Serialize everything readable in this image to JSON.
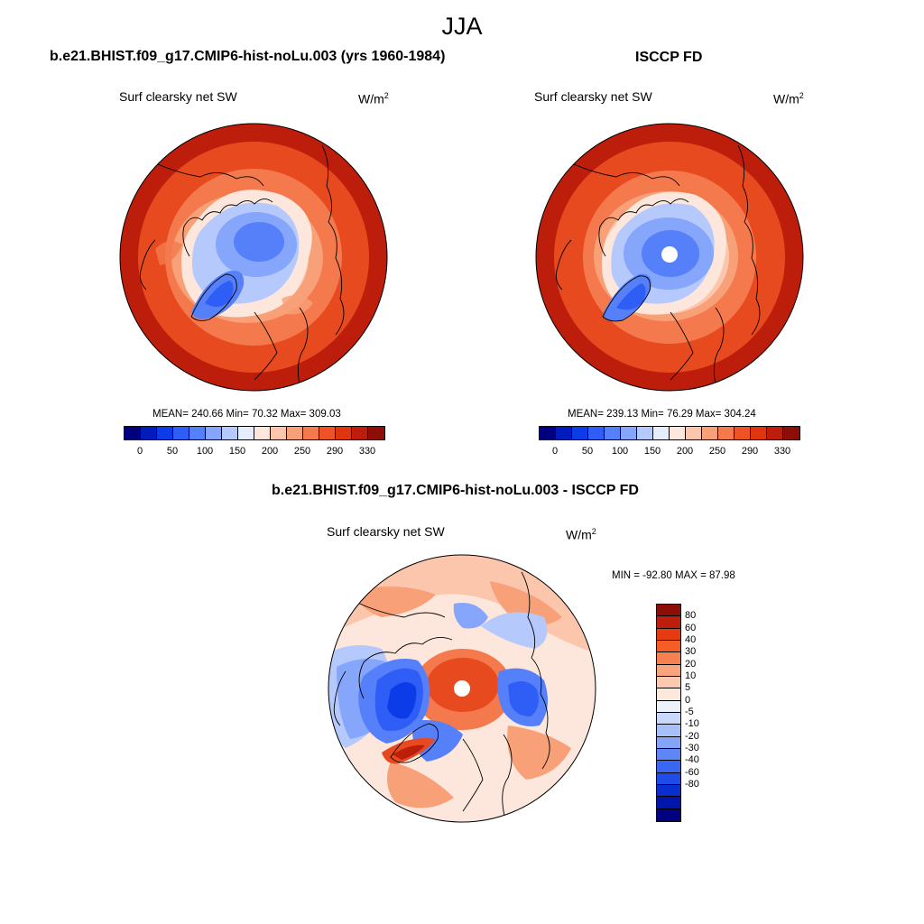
{
  "season": "JJA",
  "panels": {
    "model": {
      "title": "b.e21.BHIST.f09_g17.CMIP6-hist-noLu.003 (yrs 1960-1984)",
      "variable": "Surf clearsky net SW",
      "units_base": "W/m",
      "units_exp": "2",
      "stats": "MEAN= 240.66  Min=  70.32  Max= 309.03"
    },
    "obs": {
      "title": "ISCCP FD",
      "variable": "Surf clearsky net SW",
      "units_base": "W/m",
      "units_exp": "2",
      "stats": "MEAN= 239.13  Min=  76.29  Max= 304.24"
    },
    "diff": {
      "title": "b.e21.BHIST.f09_g17.CMIP6-hist-noLu.003 - ISCCP FD",
      "variable": "Surf clearsky net SW",
      "units_base": "W/m",
      "units_exp": "2",
      "stats": "MIN = -92.80 MAX =  87.98"
    }
  },
  "colorbar_main": {
    "colors": [
      "#00007f",
      "#001cbc",
      "#0b3ce8",
      "#2e5ef5",
      "#5680f9",
      "#86a6fb",
      "#b5c9fc",
      "#e6eefb",
      "#fde7dc",
      "#fcc6ad",
      "#f8a078",
      "#f47a4e",
      "#ee5326",
      "#df3410",
      "#bc1e0b",
      "#8c0e06"
    ],
    "tick_labels": [
      "0",
      "50",
      "100",
      "150",
      "200",
      "250",
      "290",
      "330"
    ]
  },
  "colorbar_diff": {
    "colors": [
      "#8c0e06",
      "#bc1e0b",
      "#e63b12",
      "#f45e26",
      "#f68050",
      "#faa47e",
      "#fcc9af",
      "#fde8dc",
      "#eef3fb",
      "#c9d9fb",
      "#a8c0fa",
      "#84a4f8",
      "#5f86f6",
      "#3a66f4",
      "#1f4be8",
      "#0b2ed0",
      "#0015ab",
      "#000080"
    ],
    "labels": [
      "80",
      "60",
      "40",
      "30",
      "20",
      "10",
      "5",
      "0",
      "-5",
      "-10",
      "-20",
      "-30",
      "-40",
      "-60",
      "-80"
    ]
  },
  "map_colors": {
    "dark_red": "#bc1e0b",
    "red": "#e84a1f",
    "orange": "#f47a4e",
    "light_orange": "#f8a078",
    "peach": "#fcc6ad",
    "pale": "#fde7dc",
    "light_blue": "#b5c9fc",
    "blue": "#86a6fb",
    "mid_blue": "#5680f9",
    "deep_blue": "#2e5ef5",
    "navy": "#0b3ce8"
  }
}
